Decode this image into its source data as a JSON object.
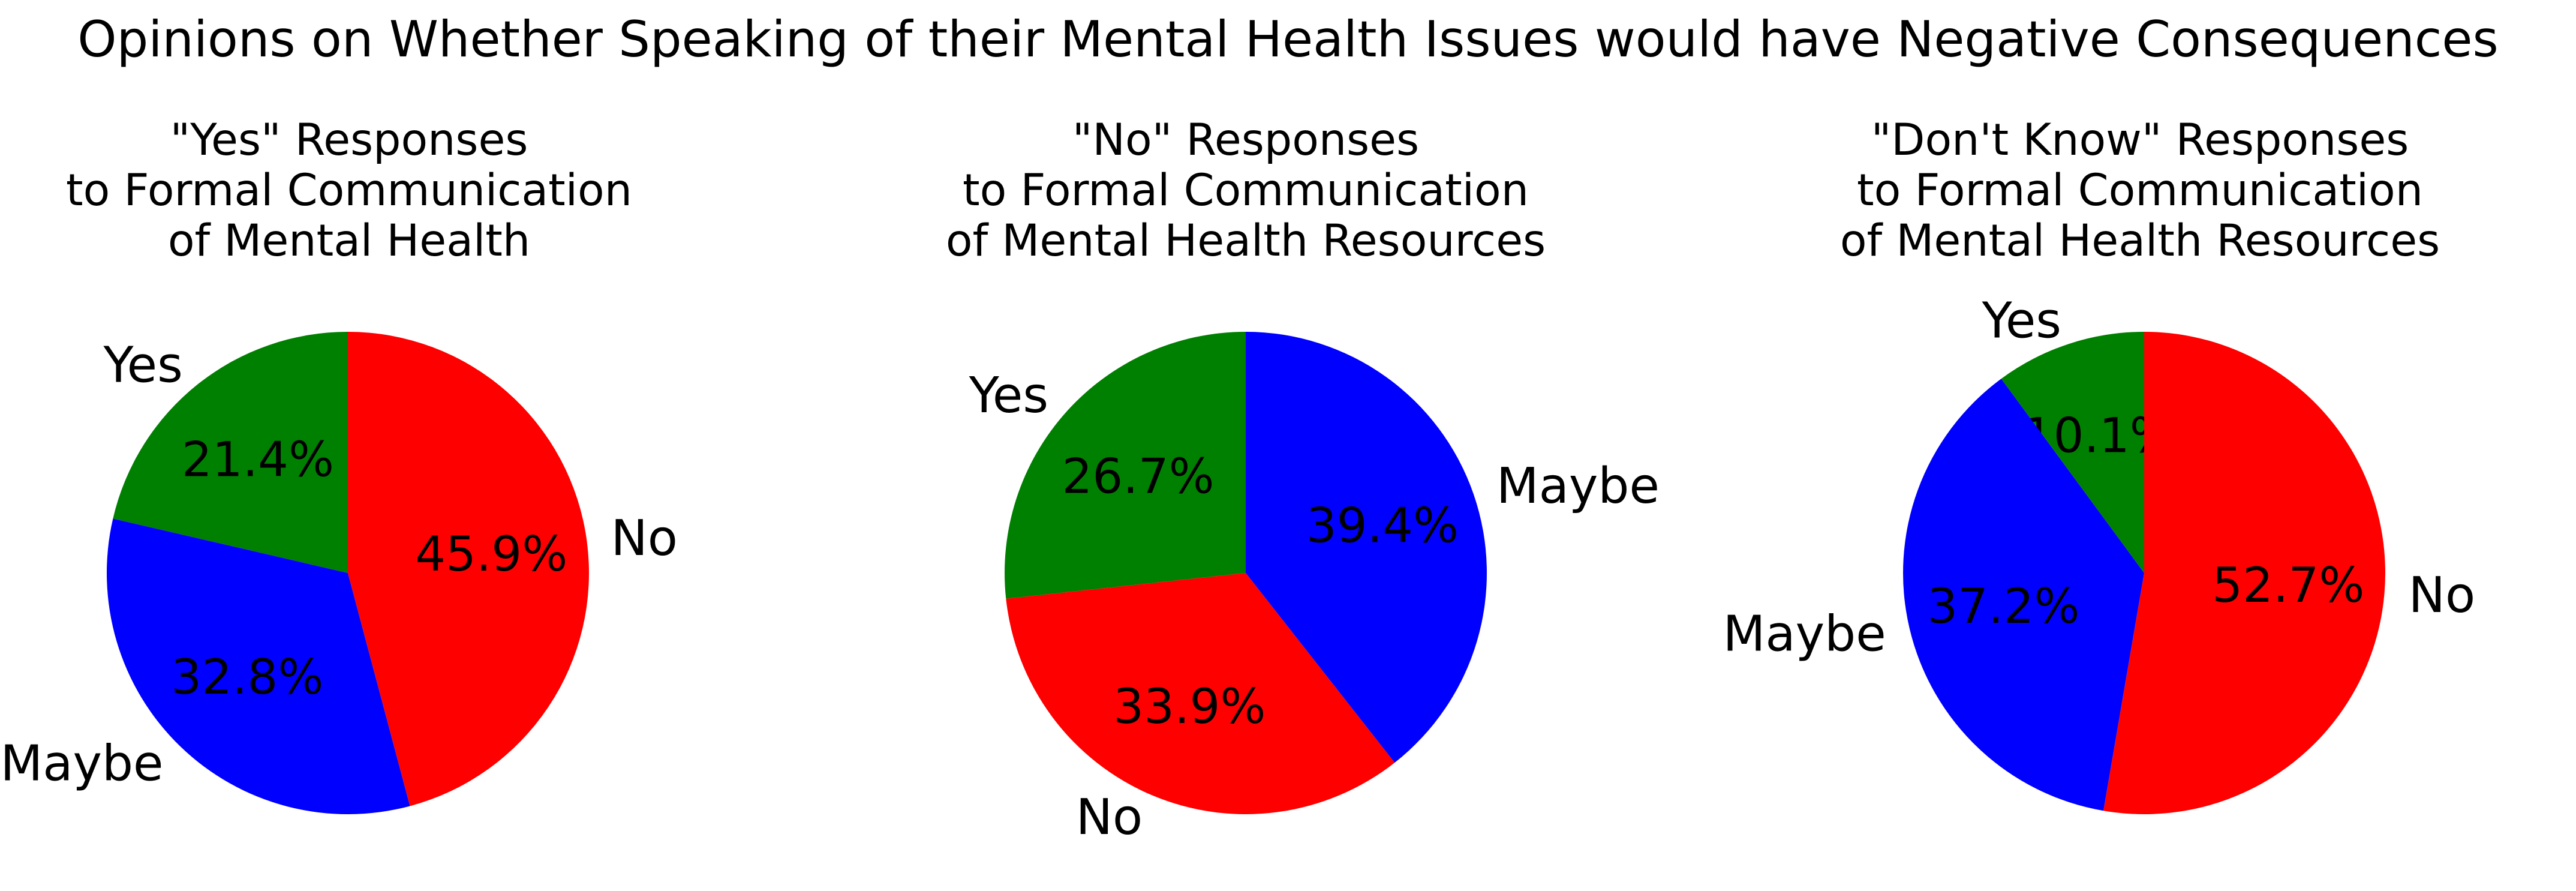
{
  "figure": {
    "title": "Opinions on Whether Speaking of their Mental Health Issues would have Negative Consequences"
  },
  "chart_data": [
    {
      "type": "pie",
      "title": "\"Yes\" Responses\nto Formal Communication\nof Mental Health",
      "title_lines": [
        "\"Yes\" Responses",
        "to Formal Communication",
        "of Mental Health"
      ],
      "slices": [
        {
          "label": "Yes",
          "value": 21.4,
          "pct_label": "21.4%",
          "color": "#008000"
        },
        {
          "label": "Maybe",
          "value": 32.8,
          "pct_label": "32.8%",
          "color": "#0000ff"
        },
        {
          "label": "No",
          "value": 45.9,
          "pct_label": "45.9%",
          "color": "#ff0000"
        }
      ]
    },
    {
      "type": "pie",
      "title": "\"No\" Responses\nto Formal Communication\nof Mental Health  Resources",
      "title_lines": [
        "\"No\" Responses",
        "to Formal Communication",
        "of Mental Health  Resources"
      ],
      "slices": [
        {
          "label": "Yes",
          "value": 26.7,
          "pct_label": "26.7%",
          "color": "#008000"
        },
        {
          "label": "No",
          "value": 33.9,
          "pct_label": "33.9%",
          "color": "#ff0000"
        },
        {
          "label": "Maybe",
          "value": 39.4,
          "pct_label": "39.4%",
          "color": "#0000ff"
        }
      ]
    },
    {
      "type": "pie",
      "title": "\"Don't Know\" Responses\nto Formal Communication\nof Mental Health Resources",
      "title_lines": [
        "\"Don't Know\" Responses",
        "to Formal Communication",
        "of Mental Health Resources"
      ],
      "slices": [
        {
          "label": "Yes",
          "value": 10.1,
          "pct_label": "10.1%",
          "color": "#008000"
        },
        {
          "label": "Maybe",
          "value": 37.2,
          "pct_label": "37.2%",
          "color": "#0000ff"
        },
        {
          "label": "No",
          "value": 52.7,
          "pct_label": "52.7%",
          "color": "#ff0000"
        }
      ]
    }
  ]
}
